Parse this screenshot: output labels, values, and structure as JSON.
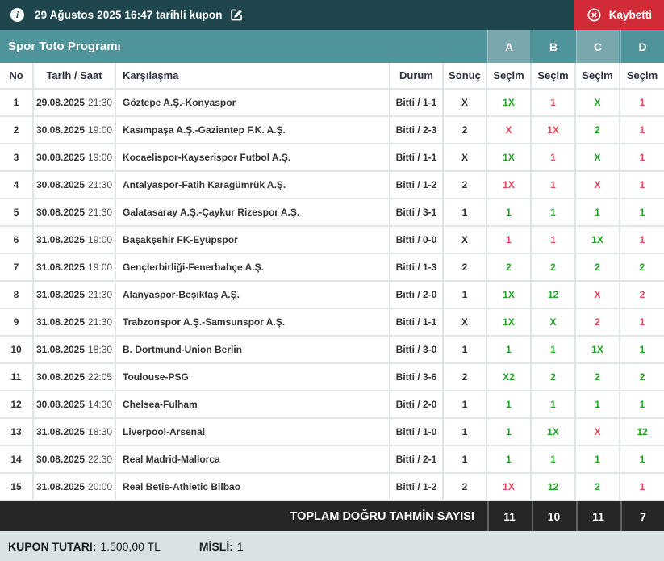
{
  "topbar": {
    "title": "29 Ağustos 2025 16:47 tarihli kupon",
    "status_label": "Kaybetti"
  },
  "program": {
    "title": "Spor Toto Programı",
    "coupon_columns": [
      "A",
      "B",
      "C",
      "D"
    ]
  },
  "table": {
    "headers": {
      "no": "No",
      "date": "Tarih / Saat",
      "match": "Karşılaşma",
      "status": "Durum",
      "result": "Sonuç",
      "pick": "Seçim"
    },
    "rows": [
      {
        "no": "1",
        "date": "29.08.2025",
        "time": "21:30",
        "match": "Göztepe A.Ş.-Konyaspor",
        "status": "Bitti / 1-1",
        "result": "X",
        "picks": [
          {
            "v": "1X",
            "correct": true
          },
          {
            "v": "1",
            "correct": false
          },
          {
            "v": "X",
            "correct": true
          },
          {
            "v": "1",
            "correct": false
          }
        ]
      },
      {
        "no": "2",
        "date": "30.08.2025",
        "time": "19:00",
        "match": "Kasımpaşa A.Ş.-Gaziantep F.K. A.Ş.",
        "status": "Bitti / 2-3",
        "result": "2",
        "picks": [
          {
            "v": "X",
            "correct": false
          },
          {
            "v": "1X",
            "correct": false
          },
          {
            "v": "2",
            "correct": true
          },
          {
            "v": "1",
            "correct": false
          }
        ]
      },
      {
        "no": "3",
        "date": "30.08.2025",
        "time": "19:00",
        "match": "Kocaelispor-Kayserispor Futbol A.Ş.",
        "status": "Bitti / 1-1",
        "result": "X",
        "picks": [
          {
            "v": "1X",
            "correct": true
          },
          {
            "v": "1",
            "correct": false
          },
          {
            "v": "X",
            "correct": true
          },
          {
            "v": "1",
            "correct": false
          }
        ]
      },
      {
        "no": "4",
        "date": "30.08.2025",
        "time": "21:30",
        "match": "Antalyaspor-Fatih Karagümrük A.Ş.",
        "status": "Bitti / 1-2",
        "result": "2",
        "picks": [
          {
            "v": "1X",
            "correct": false
          },
          {
            "v": "1",
            "correct": false
          },
          {
            "v": "X",
            "correct": false
          },
          {
            "v": "1",
            "correct": false
          }
        ]
      },
      {
        "no": "5",
        "date": "30.08.2025",
        "time": "21:30",
        "match": "Galatasaray A.Ş.-Çaykur Rizespor A.Ş.",
        "status": "Bitti / 3-1",
        "result": "1",
        "picks": [
          {
            "v": "1",
            "correct": true
          },
          {
            "v": "1",
            "correct": true
          },
          {
            "v": "1",
            "correct": true
          },
          {
            "v": "1",
            "correct": true
          }
        ]
      },
      {
        "no": "6",
        "date": "31.08.2025",
        "time": "19:00",
        "match": "Başakşehir FK-Eyüpspor",
        "status": "Bitti / 0-0",
        "result": "X",
        "picks": [
          {
            "v": "1",
            "correct": false
          },
          {
            "v": "1",
            "correct": false
          },
          {
            "v": "1X",
            "correct": true
          },
          {
            "v": "1",
            "correct": false
          }
        ]
      },
      {
        "no": "7",
        "date": "31.08.2025",
        "time": "19:00",
        "match": "Gençlerbirliği-Fenerbahçe A.Ş.",
        "status": "Bitti / 1-3",
        "result": "2",
        "picks": [
          {
            "v": "2",
            "correct": true
          },
          {
            "v": "2",
            "correct": true
          },
          {
            "v": "2",
            "correct": true
          },
          {
            "v": "2",
            "correct": true
          }
        ]
      },
      {
        "no": "8",
        "date": "31.08.2025",
        "time": "21:30",
        "match": "Alanyaspor-Beşiktaş A.Ş.",
        "status": "Bitti / 2-0",
        "result": "1",
        "picks": [
          {
            "v": "1X",
            "correct": true
          },
          {
            "v": "12",
            "correct": true
          },
          {
            "v": "X",
            "correct": false
          },
          {
            "v": "2",
            "correct": false
          }
        ]
      },
      {
        "no": "9",
        "date": "31.08.2025",
        "time": "21:30",
        "match": "Trabzonspor A.Ş.-Samsunspor A.Ş.",
        "status": "Bitti / 1-1",
        "result": "X",
        "picks": [
          {
            "v": "1X",
            "correct": true
          },
          {
            "v": "X",
            "correct": true
          },
          {
            "v": "2",
            "correct": false
          },
          {
            "v": "1",
            "correct": false
          }
        ]
      },
      {
        "no": "10",
        "date": "31.08.2025",
        "time": "18:30",
        "match": "B. Dortmund-Union Berlin",
        "status": "Bitti / 3-0",
        "result": "1",
        "picks": [
          {
            "v": "1",
            "correct": true
          },
          {
            "v": "1",
            "correct": true
          },
          {
            "v": "1X",
            "correct": true
          },
          {
            "v": "1",
            "correct": true
          }
        ]
      },
      {
        "no": "11",
        "date": "30.08.2025",
        "time": "22:05",
        "match": "Toulouse-PSG",
        "status": "Bitti / 3-6",
        "result": "2",
        "picks": [
          {
            "v": "X2",
            "correct": true
          },
          {
            "v": "2",
            "correct": true
          },
          {
            "v": "2",
            "correct": true
          },
          {
            "v": "2",
            "correct": true
          }
        ]
      },
      {
        "no": "12",
        "date": "30.08.2025",
        "time": "14:30",
        "match": "Chelsea-Fulham",
        "status": "Bitti / 2-0",
        "result": "1",
        "picks": [
          {
            "v": "1",
            "correct": true
          },
          {
            "v": "1",
            "correct": true
          },
          {
            "v": "1",
            "correct": true
          },
          {
            "v": "1",
            "correct": true
          }
        ]
      },
      {
        "no": "13",
        "date": "31.08.2025",
        "time": "18:30",
        "match": "Liverpool-Arsenal",
        "status": "Bitti / 1-0",
        "result": "1",
        "picks": [
          {
            "v": "1",
            "correct": true
          },
          {
            "v": "1X",
            "correct": true
          },
          {
            "v": "X",
            "correct": false
          },
          {
            "v": "12",
            "correct": true
          }
        ]
      },
      {
        "no": "14",
        "date": "30.08.2025",
        "time": "22:30",
        "match": "Real Madrid-Mallorca",
        "status": "Bitti / 2-1",
        "result": "1",
        "picks": [
          {
            "v": "1",
            "correct": true
          },
          {
            "v": "1",
            "correct": true
          },
          {
            "v": "1",
            "correct": true
          },
          {
            "v": "1",
            "correct": true
          }
        ]
      },
      {
        "no": "15",
        "date": "31.08.2025",
        "time": "20:00",
        "match": "Real Betis-Athletic Bilbao",
        "status": "Bitti / 1-2",
        "result": "2",
        "picks": [
          {
            "v": "1X",
            "correct": false
          },
          {
            "v": "12",
            "correct": true
          },
          {
            "v": "2",
            "correct": true
          },
          {
            "v": "1",
            "correct": false
          }
        ]
      }
    ],
    "total_label": "TOPLAM DOĞRU TAHMİN SAYISI",
    "totals": [
      "11",
      "10",
      "11",
      "7"
    ]
  },
  "footer": {
    "coupon_label": "KUPON TUTARI:",
    "coupon_value": "1.500,00 TL",
    "multiplier_label": "MİSLİ:",
    "multiplier_value": "1"
  },
  "colors": {
    "topbar_bg": "#1E464C",
    "program_bar_bg": "#4F949A",
    "highlight_column_bg": "#78A7AD",
    "lost_red": "#D02B37",
    "correct_green": "#1FA321",
    "wrong_red": "#E9485A",
    "total_row_bg": "#262626",
    "footer_bg": "#D8E1E3"
  },
  "icons": {
    "info": "info-icon",
    "edit": "edit-pencil-icon",
    "lost": "circle-x-icon"
  }
}
